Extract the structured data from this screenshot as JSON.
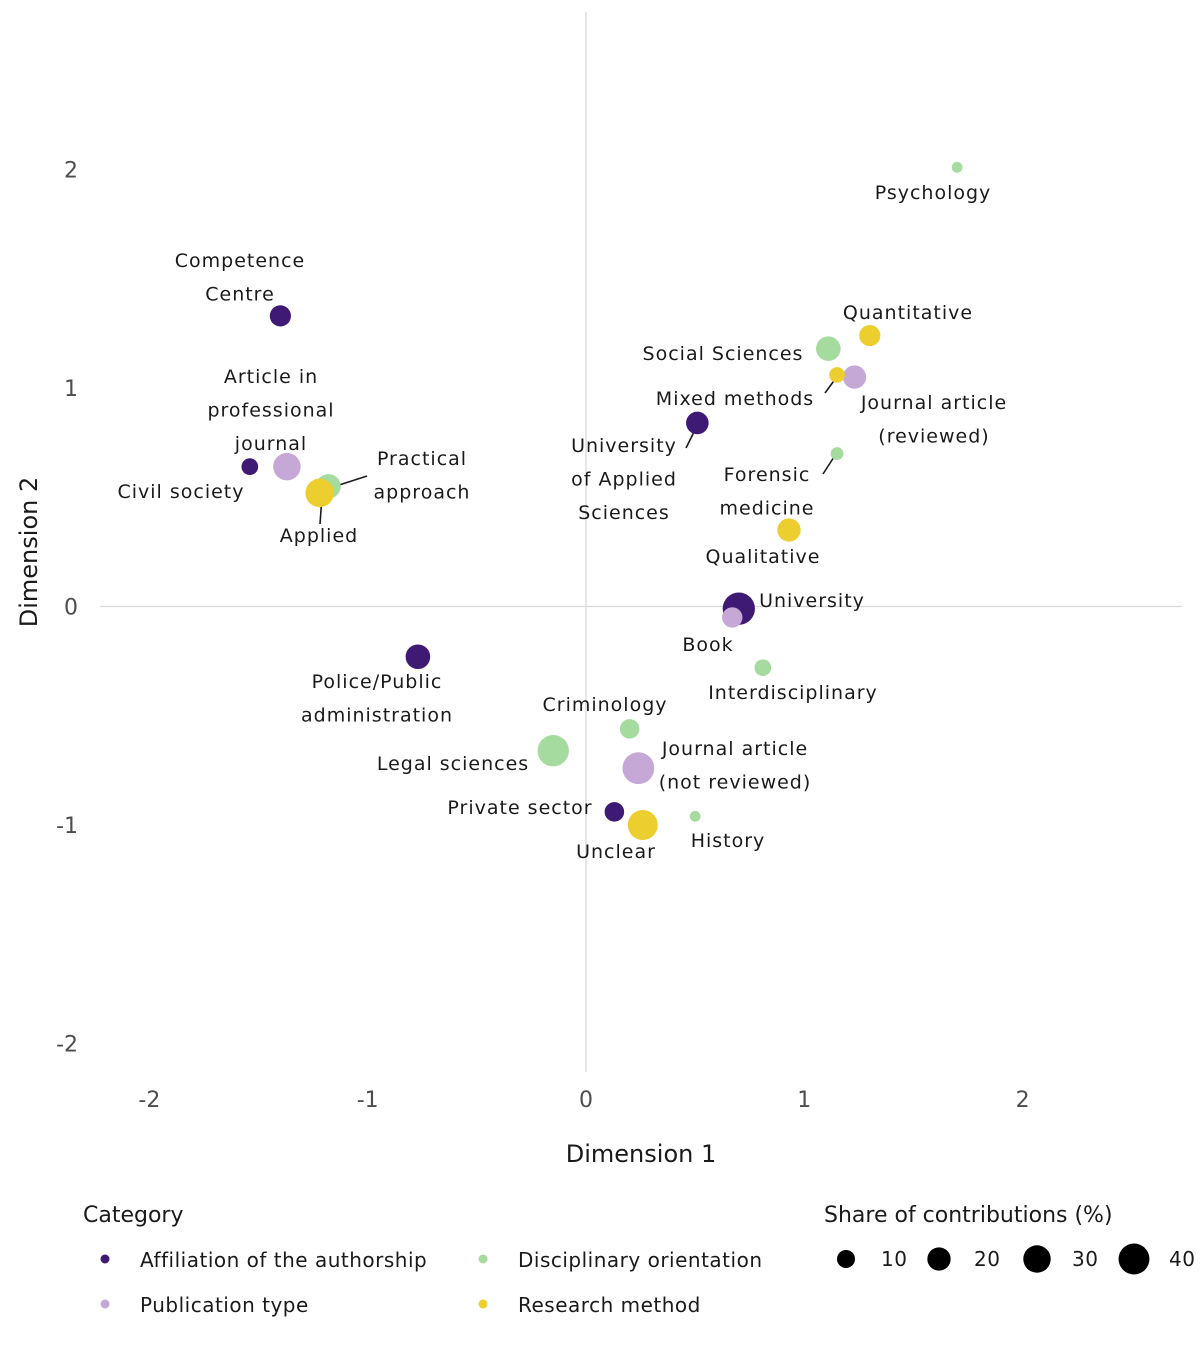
{
  "chart_data": {
    "type": "scatter",
    "title": "",
    "xlabel": "Dimension 1",
    "ylabel": "Dimension 2",
    "xlim": [
      -2.2,
      2.7
    ],
    "ylim": [
      -2.2,
      2.7
    ],
    "x_ticks": [
      "-2",
      "-1",
      "0",
      "1",
      "2"
    ],
    "y_ticks": [
      "-2",
      "-1",
      "0",
      "1",
      "2"
    ],
    "reference_lines": {
      "x": 0,
      "y": 0
    },
    "grid": false,
    "colors": {
      "Affiliation of the authorship": "#3f1a75",
      "Publication type": "#c5a8d6",
      "Disciplinary orientation": "#a6dba0",
      "Research method": "#ecce2f"
    },
    "legend": {
      "category_title": "Category",
      "size_title": "Share of contributions (%)",
      "categories": [
        "Affiliation of the authorship",
        "Disciplinary orientation",
        "Publication type",
        "Research method"
      ],
      "sizes": [
        10,
        20,
        30,
        40
      ],
      "size_labels": [
        "10",
        "20",
        "30",
        "40"
      ],
      "placement": "bottom"
    },
    "points": [
      {
        "label": "Competence\nCentre",
        "category": "Affiliation of the authorship",
        "x": -1.4,
        "y": 1.33,
        "size": 10
      },
      {
        "label": "Civil society",
        "category": "Affiliation of the authorship",
        "x": -1.54,
        "y": 0.64,
        "size": 5
      },
      {
        "label": "University\nof Applied\nSciences",
        "category": "Affiliation of the authorship",
        "x": 0.51,
        "y": 0.84,
        "size": 12
      },
      {
        "label": "University",
        "category": "Affiliation of the authorship",
        "x": 0.7,
        "y": -0.01,
        "size": 30
      },
      {
        "label": "Police/Public\nadministration",
        "category": "Affiliation of the authorship",
        "x": -0.77,
        "y": -0.23,
        "size": 15
      },
      {
        "label": "Private sector",
        "category": "Affiliation of the authorship",
        "x": 0.13,
        "y": -0.94,
        "size": 8
      },
      {
        "label": "Article in\nprofessional\njournal",
        "category": "Publication type",
        "x": -1.37,
        "y": 0.64,
        "size": 20
      },
      {
        "label": "Journal article\n(reviewed)",
        "category": "Publication type",
        "x": 1.23,
        "y": 1.05,
        "size": 13
      },
      {
        "label": "Book",
        "category": "Publication type",
        "x": 0.67,
        "y": -0.05,
        "size": 9
      },
      {
        "label": "Journal article\n(not reviewed)",
        "category": "Publication type",
        "x": 0.24,
        "y": -0.74,
        "size": 29
      },
      {
        "label": "Psychology",
        "category": "Disciplinary orientation",
        "x": 1.7,
        "y": 2.01,
        "size": 1
      },
      {
        "label": "Social Sciences",
        "category": "Disciplinary orientation",
        "x": 1.11,
        "y": 1.18,
        "size": 15
      },
      {
        "label": "Forensic\nmedicine",
        "category": "Disciplinary orientation",
        "x": 1.15,
        "y": 0.7,
        "size": 2
      },
      {
        "label": "Practical\napproach",
        "category": "Disciplinary orientation",
        "x": -1.18,
        "y": 0.55,
        "size": 15
      },
      {
        "label": "Interdisciplinary",
        "category": "Disciplinary orientation",
        "x": 0.81,
        "y": -0.28,
        "size": 5
      },
      {
        "label": "Criminology",
        "category": "Disciplinary orientation",
        "x": 0.2,
        "y": -0.56,
        "size": 8
      },
      {
        "label": "Legal sciences",
        "category": "Disciplinary orientation",
        "x": -0.15,
        "y": -0.66,
        "size": 28
      },
      {
        "label": "History",
        "category": "Disciplinary orientation",
        "x": 0.5,
        "y": -0.96,
        "size": 1
      },
      {
        "label": "Quantitative",
        "category": "Research method",
        "x": 1.3,
        "y": 1.24,
        "size": 10
      },
      {
        "label": "Mixed methods",
        "category": "Research method",
        "x": 1.15,
        "y": 1.06,
        "size": 4
      },
      {
        "label": "Applied",
        "category": "Research method",
        "x": -1.22,
        "y": 0.52,
        "size": 22
      },
      {
        "label": "Qualitative",
        "category": "Research method",
        "x": 0.93,
        "y": 0.35,
        "size": 13
      },
      {
        "label": "Unclear",
        "category": "Research method",
        "x": 0.26,
        "y": -1.0,
        "size": 25
      }
    ]
  }
}
